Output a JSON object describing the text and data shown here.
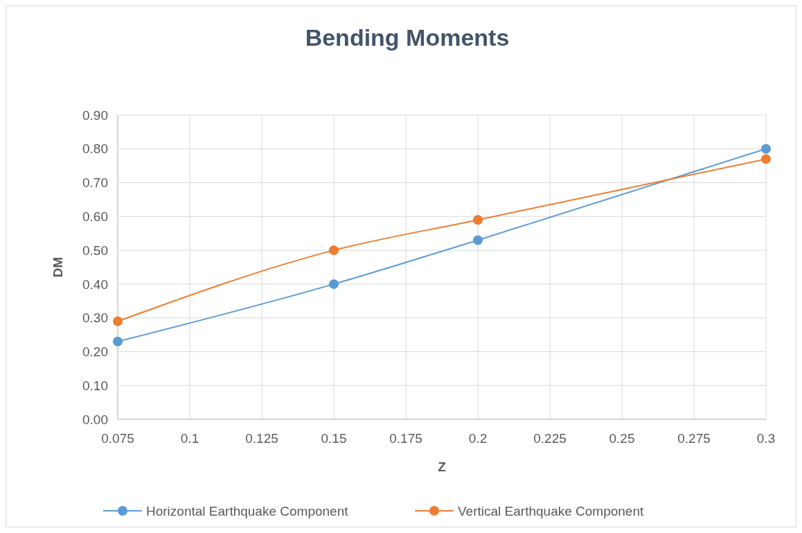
{
  "chart_data": {
    "type": "line",
    "title": "Bending Moments",
    "xlabel": "Z",
    "ylabel": "DM",
    "x": [
      0.075,
      0.15,
      0.2,
      0.3
    ],
    "series": [
      {
        "name": "Horizontal Earthquake Component",
        "color": "#5b9bd5",
        "values": [
          0.23,
          0.4,
          0.53,
          0.8
        ]
      },
      {
        "name": "Vertical Earthquake Component",
        "color": "#ed7d31",
        "values": [
          0.29,
          0.5,
          0.59,
          0.77
        ]
      }
    ],
    "xlim": [
      0.075,
      0.3
    ],
    "xticks": [
      0.075,
      0.1,
      0.125,
      0.15,
      0.175,
      0.2,
      0.225,
      0.25,
      0.275,
      0.3
    ],
    "ylim": [
      0,
      0.9
    ],
    "yticks": [
      {
        "value": 0,
        "label": "0.00"
      },
      {
        "value": 0.1,
        "label": "0.10"
      },
      {
        "value": 0.2,
        "label": "0.20"
      },
      {
        "value": 0.3,
        "label": "0.30"
      },
      {
        "value": 0.4,
        "label": "0.40"
      },
      {
        "value": 0.5,
        "label": "0.50"
      },
      {
        "value": 0.6,
        "label": "0.60"
      },
      {
        "value": 0.7,
        "label": "0.70"
      },
      {
        "value": 0.8,
        "label": "0.80"
      },
      {
        "value": 0.9,
        "label": "0.90"
      }
    ],
    "grid": true,
    "legend": "bottom",
    "marker": "circle",
    "line_style": "solid"
  }
}
